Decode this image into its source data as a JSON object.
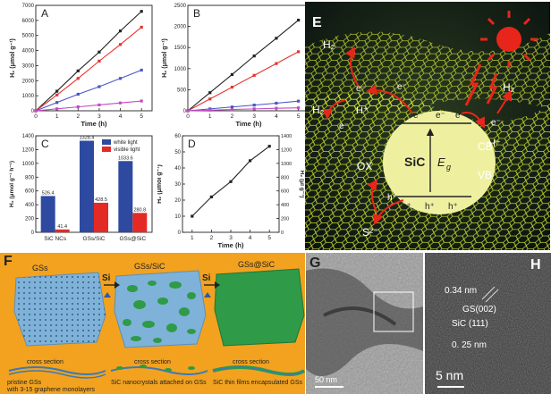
{
  "panel_letters": {
    "a": "A",
    "b": "B",
    "c": "C",
    "d": "D",
    "e": "E",
    "f": "F",
    "g": "G",
    "h": "H"
  },
  "colors": {
    "black": "#222222",
    "red": "#e8332f",
    "blue": "#4a55c8",
    "magenta": "#c64ac6",
    "bar_white": "#2d4aa0",
    "bar_visible": "#e42a25",
    "f_bg": "#f2a21f",
    "gs_blue": "#7fb2d8",
    "sic_green": "#2f9a48",
    "e_bg": "#0f1a16",
    "e_mesh": "#d6e832",
    "e_sun": "#e8251a",
    "e_circle": "#eef0a0"
  },
  "chart_data": [
    {
      "type": "line",
      "panel": "A",
      "xlabel": "Time (h)",
      "ylabel": "H₂ (μmol g⁻¹)",
      "xlim": [
        0,
        5.5
      ],
      "ylim": [
        0,
        7000
      ],
      "xticks": [
        0,
        1,
        2,
        3,
        4,
        5
      ],
      "yticks": [
        0,
        1000,
        2000,
        3000,
        4000,
        5000,
        6000,
        7000
      ],
      "x": [
        0,
        1,
        2,
        3,
        4,
        5
      ],
      "series": [
        {
          "color": "#222222",
          "values": [
            0,
            1300,
            2650,
            3900,
            5300,
            6600
          ]
        },
        {
          "color": "#e8332f",
          "values": [
            0,
            1050,
            2150,
            3300,
            4400,
            5550
          ]
        },
        {
          "color": "#4a55c8",
          "values": [
            0,
            550,
            1100,
            1600,
            2150,
            2700
          ]
        },
        {
          "color": "#c64ac6",
          "values": [
            0,
            130,
            260,
            390,
            520,
            650
          ]
        }
      ]
    },
    {
      "type": "line",
      "panel": "B",
      "xlabel": "Time (h)",
      "ylabel": "H₂ (μmol g⁻¹)",
      "xlim": [
        0,
        5.5
      ],
      "ylim": [
        0,
        2500
      ],
      "xticks": [
        0,
        1,
        2,
        3,
        4,
        5
      ],
      "yticks": [
        0,
        500,
        1000,
        1500,
        2000,
        2500
      ],
      "x": [
        0,
        1,
        2,
        3,
        4,
        5
      ],
      "series": [
        {
          "color": "#222222",
          "values": [
            0,
            430,
            860,
            1300,
            1720,
            2150
          ]
        },
        {
          "color": "#e8332f",
          "values": [
            0,
            280,
            560,
            840,
            1120,
            1400
          ]
        },
        {
          "color": "#4a55c8",
          "values": [
            0,
            45,
            90,
            135,
            180,
            230
          ]
        },
        {
          "color": "#c64ac6",
          "values": [
            0,
            15,
            30,
            45,
            60,
            70
          ]
        }
      ]
    },
    {
      "type": "bar",
      "panel": "C",
      "ylabel": "H₂ (μmol g⁻¹ h⁻¹)",
      "ylim": [
        0,
        1400
      ],
      "yticks": [
        0,
        200,
        400,
        600,
        800,
        1000,
        1200,
        1400
      ],
      "categories": [
        "SiC NCs",
        "GSs/SiC",
        "GSs@SiC"
      ],
      "legend_position": "top-right",
      "series": [
        {
          "name": "white light",
          "color": "#2d4aa0",
          "values": [
            526.4,
            1328.4,
            1033.6
          ]
        },
        {
          "name": "visible light",
          "color": "#e42a25",
          "values": [
            41.4,
            428.5,
            280.8
          ]
        }
      ],
      "data_labels": [
        "526.4",
        "41.4",
        "1328.4",
        "428.5",
        "1033.6",
        "280.8"
      ]
    },
    {
      "type": "line",
      "panel": "D",
      "xlabel": "Time (h)",
      "ylabel": "H₂ (μmol g⁻¹)",
      "ylabel_right": "H₂ (μl g⁻¹)",
      "xlim": [
        0.5,
        5.5
      ],
      "ylim": [
        0,
        60
      ],
      "ylim_right": [
        0,
        1400
      ],
      "xticks": [
        1,
        2,
        3,
        4,
        5
      ],
      "yticks": [
        0,
        10,
        20,
        30,
        40,
        50,
        60
      ],
      "yticks_right": [
        0,
        200,
        400,
        600,
        800,
        1000,
        1200,
        1400
      ],
      "x": [
        1,
        2,
        3,
        4,
        5
      ],
      "series": [
        {
          "color": "#222222",
          "values": [
            10,
            22,
            31.5,
            44.5,
            53.5
          ]
        }
      ]
    }
  ],
  "diagram_e": {
    "h2_labels": [
      "H₂",
      "H₂",
      "H₂"
    ],
    "electron": "e⁻",
    "h_plus": "H⁺",
    "sic": "SiC",
    "eg": "E",
    "eg_sub": "g",
    "cb": "CB",
    "vb": "VB",
    "ox": "OX",
    "s2": "S²⁻",
    "hole": "h⁺"
  },
  "diagram_f": {
    "stage_titles": [
      "GSs",
      "GSs/SiC",
      "GSs@SiC"
    ],
    "arrow_labels": [
      "Si",
      "Si"
    ],
    "cross_section_labels": [
      "cross section",
      "cross section",
      "cross section"
    ],
    "captions": [
      "pristine GSs",
      "with 3-15 graphene monolayers",
      "SiC nanocrystals attached on GSs",
      "SiC thin films encapsulated GSs"
    ]
  },
  "micrograph_g": {
    "scale_bar": "50 nm"
  },
  "micrograph_h": {
    "labels": [
      "0.34 nm",
      "GS(002)",
      "SiC (111)",
      "0. 25  nm"
    ],
    "scale_bar": "5 nm"
  }
}
